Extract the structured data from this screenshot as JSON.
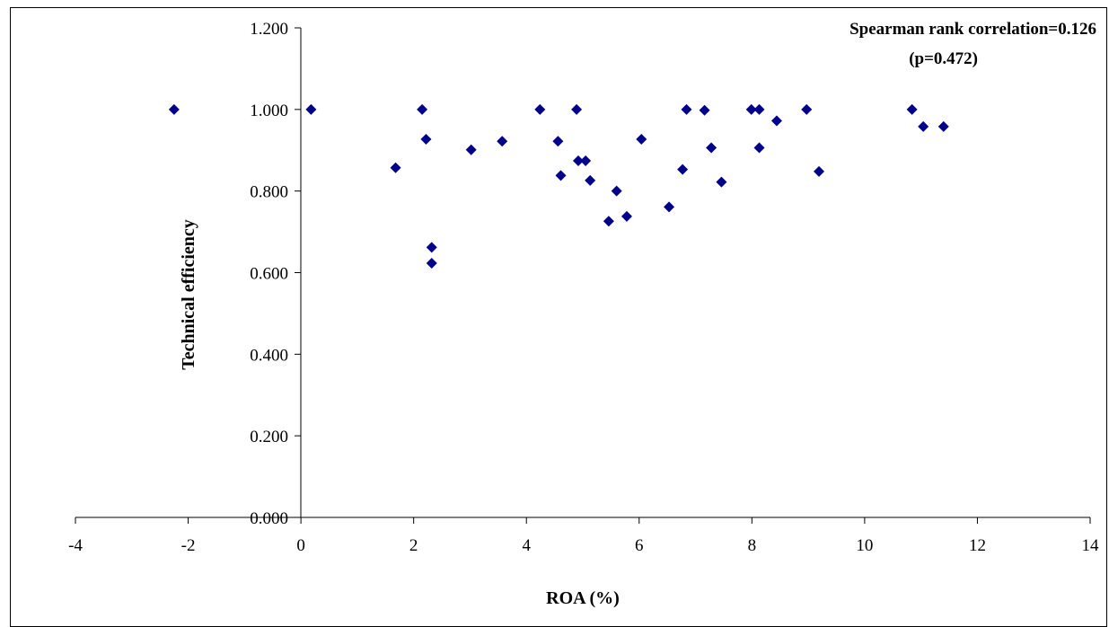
{
  "chart_data": {
    "type": "scatter",
    "title": "",
    "xlabel": "ROA (%)",
    "ylabel": "Technical efficiency",
    "xlim": [
      -4,
      14
    ],
    "ylim": [
      0,
      1.2
    ],
    "x_ticks": [
      -4,
      -2,
      0,
      2,
      4,
      6,
      8,
      10,
      12,
      14
    ],
    "x_tick_labels": [
      "-4",
      "-2",
      "0",
      "2",
      "4",
      "6",
      "8",
      "10",
      "12",
      "14"
    ],
    "y_ticks": [
      0,
      0.2,
      0.4,
      0.6,
      0.8,
      1.0,
      1.2
    ],
    "y_tick_labels": [
      "0.000",
      "0.200",
      "0.400",
      "0.600",
      "0.800",
      "1.000",
      "1.200"
    ],
    "grid": false,
    "legend": false,
    "marker": "diamond",
    "marker_color": "#00008b",
    "annotations": [
      "Spearman rank correlation=0.126",
      "(p=0.472)"
    ],
    "series": [
      {
        "points": [
          [
            -2.25,
            1.0
          ],
          [
            0.18,
            1.0
          ],
          [
            1.68,
            0.857
          ],
          [
            2.15,
            1.0
          ],
          [
            2.22,
            0.927
          ],
          [
            2.32,
            0.662
          ],
          [
            2.32,
            0.623
          ],
          [
            3.02,
            0.901
          ],
          [
            3.57,
            0.922
          ],
          [
            4.24,
            1.0
          ],
          [
            4.56,
            0.922
          ],
          [
            4.61,
            0.838
          ],
          [
            4.89,
            1.0
          ],
          [
            4.92,
            0.874
          ],
          [
            5.05,
            0.874
          ],
          [
            5.13,
            0.826
          ],
          [
            5.46,
            0.726
          ],
          [
            5.6,
            0.8
          ],
          [
            5.78,
            0.738
          ],
          [
            6.04,
            0.927
          ],
          [
            6.53,
            0.761
          ],
          [
            6.77,
            0.853
          ],
          [
            6.84,
            1.0
          ],
          [
            7.16,
            0.998
          ],
          [
            7.28,
            0.906
          ],
          [
            7.46,
            0.822
          ],
          [
            7.99,
            1.0
          ],
          [
            8.13,
            1.0
          ],
          [
            8.13,
            0.906
          ],
          [
            8.44,
            0.972
          ],
          [
            8.97,
            1.0
          ],
          [
            9.19,
            0.848
          ],
          [
            10.84,
            1.0
          ],
          [
            11.04,
            0.958
          ],
          [
            11.4,
            0.958
          ]
        ]
      }
    ]
  }
}
